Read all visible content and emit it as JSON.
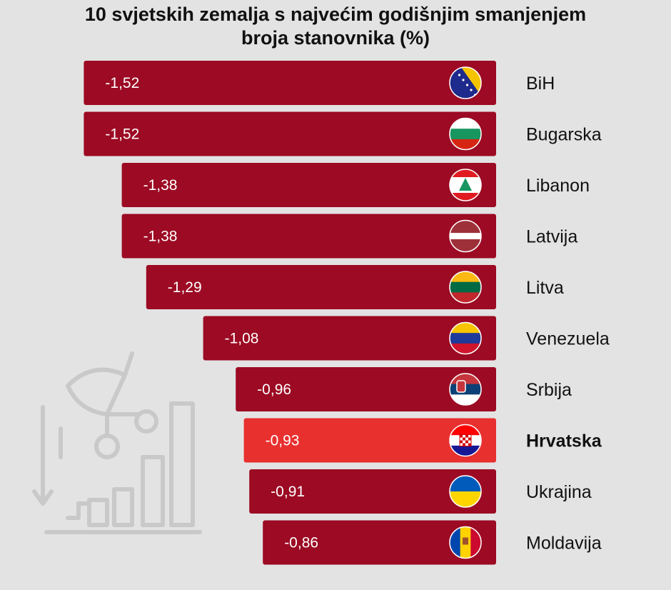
{
  "title": {
    "line1": "10 svjetskih zemalja s najvećim godišnjim smanjenjem",
    "line2": "broja stanovnika (%)"
  },
  "chart_data": {
    "type": "bar",
    "orientation": "horizontal",
    "title": "10 svjetskih zemalja s najvećim godišnjim smanjenjem broja stanovnika (%)",
    "categories": [
      "BiH",
      "Bugarska",
      "Libanon",
      "Latvija",
      "Litva",
      "Venezuela",
      "Srbija",
      "Hrvatska",
      "Ukrajina",
      "Moldavija"
    ],
    "values": [
      -1.52,
      -1.52,
      -1.38,
      -1.38,
      -1.29,
      -1.08,
      -0.96,
      -0.93,
      -0.91,
      -0.86
    ],
    "value_labels": [
      "-1,52",
      "-1,52",
      "-1,38",
      "-1,38",
      "-1,29",
      "-1,08",
      "-0,96",
      "-0,93",
      "-0,91",
      "-0,86"
    ],
    "highlight": "Hrvatska",
    "flag_icons": [
      "bih-flag-icon",
      "bulgaria-flag-icon",
      "lebanon-flag-icon",
      "latvia-flag-icon",
      "lithuania-flag-icon",
      "venezuela-flag-icon",
      "serbia-flag-icon",
      "croatia-flag-icon",
      "ukraine-flag-icon",
      "moldova-flag-icon"
    ],
    "colors": {
      "bar": "#9c0a23",
      "highlight_bar": "#e8302f",
      "background": "#e3e3e3"
    },
    "grid": false,
    "legend": "none"
  }
}
